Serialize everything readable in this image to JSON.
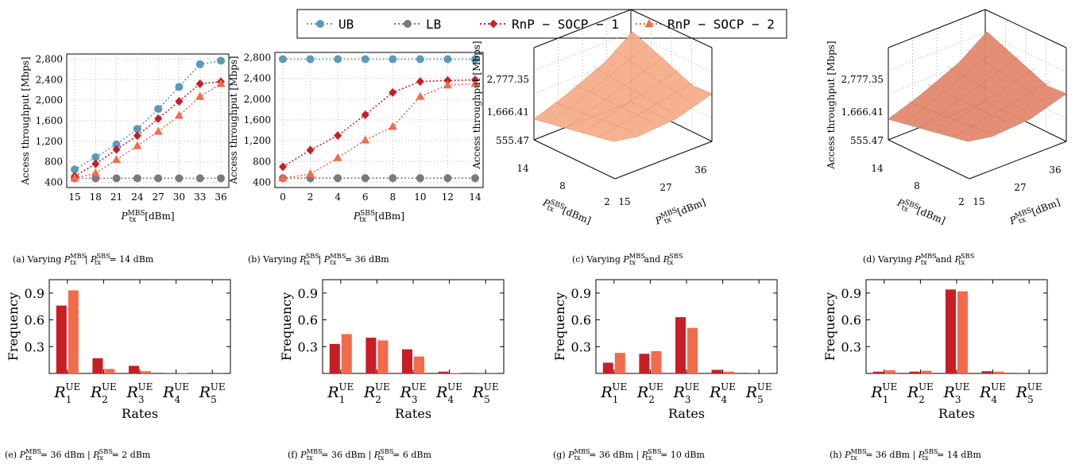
{
  "legend": {
    "entries": [
      {
        "label": "UB",
        "color": "#5b9ab8",
        "marker": "circle"
      },
      {
        "label": "LB",
        "color": "#7a7a7a",
        "marker": "circle"
      },
      {
        "label": "RnP − SOCP − 1",
        "color": "#c81d25",
        "marker": "diamond"
      },
      {
        "label": "RnP − SOCP − 2",
        "color": "#f26b4b",
        "marker": "triangle"
      }
    ]
  },
  "colors": {
    "ub": "#5b9ab8",
    "lb": "#7a7a7a",
    "socp1": "#c81d25",
    "socp2": "#f26b4b",
    "surface_c": "#f6ad8b",
    "surface_d": "#e38a6e"
  },
  "chart_data": [
    {
      "id": "a",
      "type": "line",
      "caption_prefix": "(a)",
      "caption_text": "Varying P_tx^MBS | P_tx^SBS = 14 dBm",
      "xlabel": "P_tx^MBS [dBm]",
      "ylabel": "Access throughput [Mbps]",
      "x": [
        15,
        18,
        21,
        24,
        27,
        30,
        33,
        36
      ],
      "x_ticks": [
        "15",
        "18",
        "21",
        "24",
        "27",
        "30",
        "33",
        "36"
      ],
      "y_ticks": [
        "400",
        "800",
        "1,200",
        "1,600",
        "2,000",
        "2,400",
        "2,800"
      ],
      "ylim": [
        300,
        2900
      ],
      "grid": true,
      "series": [
        {
          "name": "UB",
          "values": [
            650,
            890,
            1140,
            1440,
            1830,
            2260,
            2700,
            2770
          ]
        },
        {
          "name": "LB",
          "values": [
            480,
            480,
            480,
            480,
            480,
            480,
            480,
            480
          ]
        },
        {
          "name": "RnP − SOCP − 1",
          "values": [
            520,
            760,
            1040,
            1310,
            1640,
            1980,
            2320,
            2360
          ]
        },
        {
          "name": "RnP − SOCP − 2",
          "values": [
            480,
            580,
            840,
            1110,
            1390,
            1700,
            2070,
            2320
          ]
        }
      ]
    },
    {
      "id": "b",
      "type": "line",
      "caption_prefix": "(b)",
      "caption_text": "Varying P_tx^SBS | P_tx^MBS = 36 dBm",
      "xlabel": "P_tx^SBS [dBm]",
      "ylabel": "Access throughput [Mbps]",
      "x": [
        0,
        2,
        4,
        6,
        8,
        10,
        12,
        14
      ],
      "x_ticks": [
        "0",
        "2",
        "4",
        "6",
        "8",
        "10",
        "12",
        "14"
      ],
      "y_ticks": [
        "400",
        "800",
        "1,200",
        "1,600",
        "2,000",
        "2,400",
        "2,800"
      ],
      "ylim": [
        300,
        2900
      ],
      "grid": true,
      "series": [
        {
          "name": "UB",
          "values": [
            2770,
            2770,
            2770,
            2770,
            2770,
            2770,
            2770,
            2770
          ]
        },
        {
          "name": "LB",
          "values": [
            480,
            480,
            480,
            480,
            480,
            480,
            480,
            480
          ]
        },
        {
          "name": "RnP − SOCP − 1",
          "values": [
            700,
            1020,
            1300,
            1700,
            2130,
            2340,
            2360,
            2370
          ]
        },
        {
          "name": "RnP − SOCP − 2",
          "values": [
            480,
            560,
            870,
            1210,
            1470,
            2050,
            2270,
            2300
          ]
        }
      ]
    },
    {
      "id": "c",
      "type": "surface",
      "caption_prefix": "(c)",
      "caption_text": "Varying P_tx^MBS and P_tx^SBS",
      "ylabel": "Access throughput [Mbps]",
      "z_ticks": [
        "2,777.35",
        "1,666.41",
        "555.47"
      ],
      "sbs_ticks": [
        "14",
        "8",
        "2"
      ],
      "mbs_ticks": [
        "15",
        "27",
        "36"
      ],
      "sbs_label": "P_tx^SBS [dBm]",
      "mbs_label": "P_tx^MBS [dBm]"
    },
    {
      "id": "d",
      "type": "surface",
      "caption_prefix": "(d)",
      "caption_text": "Varying P_tx^MBS and P_tx^SBS",
      "ylabel": "Access throughput [Mbps]",
      "z_ticks": [
        "2,777.35",
        "1,666.41",
        "555.47"
      ],
      "sbs_ticks": [
        "14",
        "8",
        "2"
      ],
      "mbs_ticks": [
        "15",
        "27",
        "36"
      ],
      "sbs_label": "P_tx^SBS [dBm]",
      "mbs_label": "P_tx^MBS [dBm]"
    },
    {
      "id": "e",
      "type": "bar",
      "caption_prefix": "(e)",
      "caption_text": "P_tx^MBS = 36 dBm | P_tx^SBS = 2 dBm",
      "xlabel": "Rates",
      "ylabel": "Frequency",
      "categories": [
        "R1",
        "R2",
        "R3",
        "R4",
        "R5"
      ],
      "y_ticks": [
        "0.3",
        "0.6",
        "0.9"
      ],
      "ylim": [
        0,
        1.05
      ],
      "series": [
        {
          "values": [
            0.76,
            0.17,
            0.085,
            0.004,
            0.002
          ]
        },
        {
          "values": [
            0.93,
            0.05,
            0.025,
            0.004,
            0.002
          ]
        }
      ]
    },
    {
      "id": "f",
      "type": "bar",
      "caption_prefix": "(f)",
      "caption_text": "P_tx^MBS = 36 dBm | P_tx^SBS = 6 dBm",
      "xlabel": "Rates",
      "ylabel": "Frequency",
      "categories": [
        "R1",
        "R2",
        "R3",
        "R4",
        "R5"
      ],
      "y_ticks": [
        "0.3",
        "0.6",
        "0.9"
      ],
      "ylim": [
        0,
        1.05
      ],
      "series": [
        {
          "values": [
            0.33,
            0.4,
            0.27,
            0.02,
            0.003
          ]
        },
        {
          "values": [
            0.44,
            0.37,
            0.19,
            0.005,
            0.002
          ]
        }
      ]
    },
    {
      "id": "g",
      "type": "bar",
      "caption_prefix": "(g)",
      "caption_text": "P_tx^MBS = 36 dBm | P_tx^SBS = 10 dBm",
      "xlabel": "Rates",
      "ylabel": "Frequency",
      "categories": [
        "R1",
        "R2",
        "R3",
        "R4",
        "R5"
      ],
      "y_ticks": [
        "0.3",
        "0.6",
        "0.9"
      ],
      "ylim": [
        0,
        1.05
      ],
      "series": [
        {
          "values": [
            0.12,
            0.22,
            0.63,
            0.04,
            0.003
          ]
        },
        {
          "values": [
            0.23,
            0.25,
            0.51,
            0.02,
            0.002
          ]
        }
      ]
    },
    {
      "id": "h",
      "type": "bar",
      "caption_prefix": "(h)",
      "caption_text": "P_tx^MBS = 36 dBm | P_tx^SBS = 14 dBm",
      "xlabel": "Rates",
      "ylabel": "Frequency",
      "categories": [
        "R1",
        "R2",
        "R3",
        "R4",
        "R5"
      ],
      "y_ticks": [
        "0.3",
        "0.6",
        "0.9"
      ],
      "ylim": [
        0,
        1.05
      ],
      "series": [
        {
          "values": [
            0.02,
            0.02,
            0.94,
            0.025,
            0.003
          ]
        },
        {
          "values": [
            0.035,
            0.03,
            0.92,
            0.02,
            0.002
          ]
        }
      ]
    }
  ]
}
